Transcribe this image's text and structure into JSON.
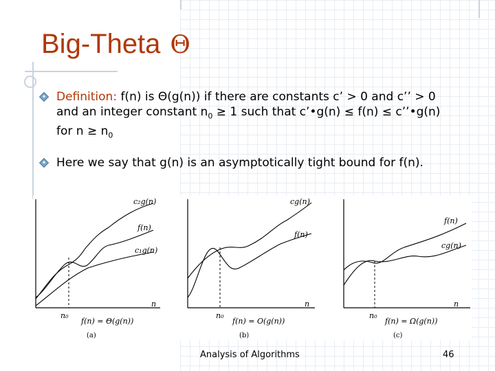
{
  "title": {
    "text": "Big-Theta",
    "symbol": "Θ"
  },
  "bullets": [
    {
      "label": "Definition:",
      "line1": " f(n) is Θ(g(n)) if there are constants c’ > 0 and c’’ > 0",
      "line2_pre": "and an integer constant n",
      "line2_sub": "0",
      "line2_post": " ≥ 1 such that c’•g(n) ≤ f(n) ≤ c’’•g(n)",
      "line3_pre": "for n ≥ n",
      "line3_sub": "0"
    },
    {
      "text": "Here we say that g(n) is an asymptotically tight bound for f(n)."
    }
  ],
  "figure": {
    "panel_a": {
      "upper": "c₂g(n)",
      "mid": "f(n)",
      "lower": "c₁g(n)",
      "x": "n",
      "n0": "n₀",
      "notation": "f(n) = Θ(g(n))",
      "caption": "(a)"
    },
    "panel_b": {
      "upper": "cg(n)",
      "lower": "f(n)",
      "x": "n",
      "n0": "n₀",
      "notation": "f(n) = O(g(n))",
      "caption": "(b)"
    },
    "panel_c": {
      "upper": "f(n)",
      "lower": "cg(n)",
      "x": "n",
      "n0": "n₀",
      "notation": "f(n) = Ω(g(n))",
      "caption": "(c)"
    }
  },
  "footer": {
    "text": "Analysis of Algorithms",
    "page": "46"
  }
}
